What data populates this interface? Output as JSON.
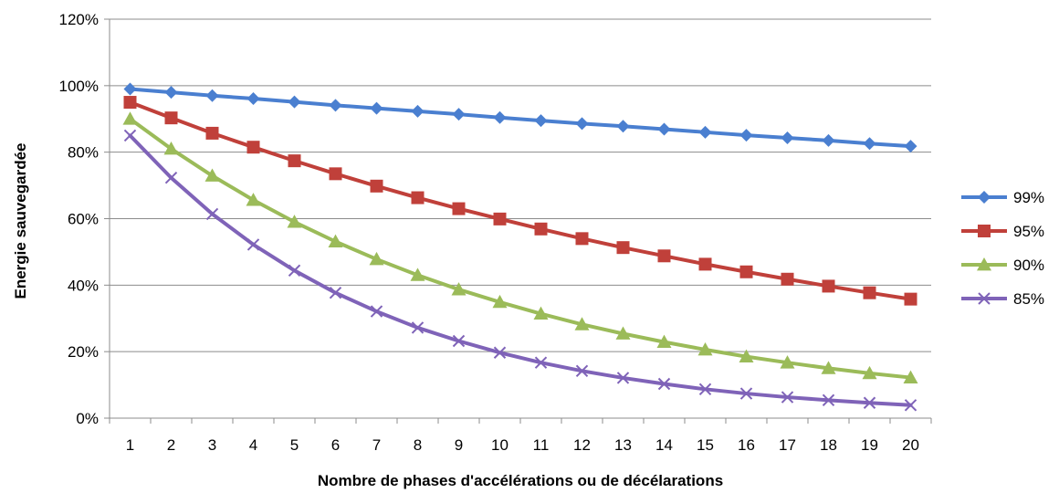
{
  "chart_data": {
    "type": "line",
    "title": "",
    "xlabel": "Nombre de phases d'accélérations ou de décélarations",
    "ylabel": "Energie sauvegardée",
    "x": [
      1,
      2,
      3,
      4,
      5,
      6,
      7,
      8,
      9,
      10,
      11,
      12,
      13,
      14,
      15,
      16,
      17,
      18,
      19,
      20
    ],
    "x_tick_labels": [
      "1",
      "2",
      "3",
      "4",
      "5",
      "6",
      "7",
      "8",
      "9",
      "10",
      "11",
      "12",
      "13",
      "14",
      "15",
      "16",
      "17",
      "18",
      "19",
      "20"
    ],
    "ylim": [
      0,
      1.2
    ],
    "y_ticks": [
      0,
      0.2,
      0.4,
      0.6,
      0.8,
      1.0,
      1.2
    ],
    "y_tick_labels": [
      "0%",
      "20%",
      "40%",
      "60%",
      "80%",
      "100%",
      "120%"
    ],
    "grid": true,
    "legend_position": "right",
    "series": [
      {
        "name": "99%",
        "color": "#4a7fd0",
        "marker": "diamond",
        "values": [
          0.99,
          0.98,
          0.97,
          0.961,
          0.951,
          0.941,
          0.932,
          0.923,
          0.914,
          0.904,
          0.895,
          0.886,
          0.878,
          0.869,
          0.86,
          0.851,
          0.843,
          0.835,
          0.826,
          0.818
        ]
      },
      {
        "name": "95%",
        "color": "#c0403a",
        "marker": "square",
        "values": [
          0.95,
          0.903,
          0.857,
          0.815,
          0.774,
          0.735,
          0.698,
          0.663,
          0.63,
          0.599,
          0.569,
          0.54,
          0.513,
          0.488,
          0.463,
          0.44,
          0.418,
          0.397,
          0.377,
          0.358
        ]
      },
      {
        "name": "90%",
        "color": "#9bbb59",
        "marker": "triangle",
        "values": [
          0.9,
          0.81,
          0.729,
          0.656,
          0.59,
          0.531,
          0.478,
          0.43,
          0.387,
          0.349,
          0.314,
          0.282,
          0.254,
          0.229,
          0.206,
          0.185,
          0.167,
          0.15,
          0.135,
          0.122
        ]
      },
      {
        "name": "85%",
        "color": "#7f63b8",
        "marker": "x",
        "values": [
          0.85,
          0.723,
          0.614,
          0.522,
          0.444,
          0.377,
          0.321,
          0.272,
          0.232,
          0.197,
          0.167,
          0.142,
          0.121,
          0.103,
          0.087,
          0.074,
          0.063,
          0.054,
          0.046,
          0.039
        ]
      }
    ]
  }
}
